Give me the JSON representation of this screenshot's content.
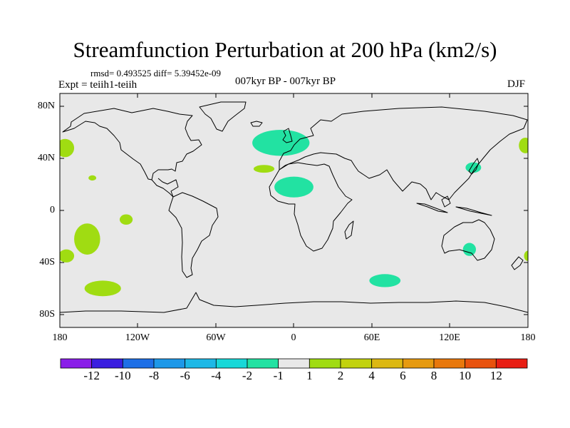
{
  "title": "Streamfunction Perturbation at 200 hPa (km2/s)",
  "stats": "rmsd= 0.493525  diff= 5.39452e-09",
  "expt": "Expt = teiih1-teiih",
  "period": "007kyr BP - 007kyr BP",
  "season": "DJF",
  "map": {
    "projection": "cylindrical equidistant",
    "lon_range": [
      -180,
      180
    ],
    "lat_range": [
      -90,
      90
    ],
    "y_tick_labels": [
      "80N",
      "40N",
      "0",
      "40S",
      "80S"
    ],
    "x_tick_labels": [
      "180",
      "120W",
      "60W",
      "0",
      "60E",
      "120E",
      "180"
    ],
    "land_fill": "#e8e8e8",
    "anomaly_regions": [
      {
        "name": "north-atlantic",
        "level": -1,
        "lon": -10,
        "lat": 52,
        "rlon": 22,
        "rlat": 10
      },
      {
        "name": "north-africa",
        "level": -1,
        "lon": 0,
        "lat": 18,
        "rlon": 15,
        "rlat": 8
      },
      {
        "name": "japan",
        "level": -1,
        "lon": 138,
        "lat": 33,
        "rlon": 6,
        "rlat": 4
      },
      {
        "name": "australia",
        "level": -1,
        "lon": 135,
        "lat": -30,
        "rlon": 5,
        "rlat": 5
      },
      {
        "name": "southern-indian",
        "level": -1,
        "lon": 70,
        "lat": -54,
        "rlon": 12,
        "rlat": 5
      },
      {
        "name": "subtropical-atlantic",
        "level": 1,
        "lon": -23,
        "lat": 32,
        "rlon": 8,
        "rlat": 3
      },
      {
        "name": "northeast-pacific",
        "level": 1,
        "lon": -176,
        "lat": 48,
        "rlon": 7,
        "rlat": 7
      },
      {
        "name": "northwest-pacific-edge",
        "level": 1,
        "lon": 178,
        "lat": 50,
        "rlon": 5,
        "rlat": 6
      },
      {
        "name": "hawaii",
        "level": 1,
        "lon": -155,
        "lat": 25,
        "rlon": 3,
        "rlat": 2
      },
      {
        "name": "central-pacific",
        "level": 1,
        "lon": -129,
        "lat": -7,
        "rlon": 5,
        "rlat": 4
      },
      {
        "name": "southeast-pacific-band",
        "level": 1,
        "lon": -159,
        "lat": -22,
        "rlon": 10,
        "rlat": 12
      },
      {
        "name": "south-pacific-west",
        "level": 1,
        "lon": -175,
        "lat": -35,
        "rlon": 6,
        "rlat": 5
      },
      {
        "name": "south-pacific-east",
        "level": 1,
        "lon": -147,
        "lat": -60,
        "rlon": 14,
        "rlat": 6
      },
      {
        "name": "south-pacific-edge",
        "level": 1,
        "lon": 180,
        "lat": -35,
        "rlon": 3,
        "rlat": 4
      }
    ]
  },
  "colorbar": {
    "colors": [
      "#8a1ee8",
      "#3a1ee0",
      "#1e6fe6",
      "#1e98e8",
      "#1eb8e6",
      "#18d8d8",
      "#22e2a2",
      "#e8e8e8",
      "#a0dc12",
      "#c2d20e",
      "#dcb812",
      "#e69a10",
      "#e8780c",
      "#e8520e",
      "#e81e14"
    ],
    "labels": [
      "-12",
      "-10",
      "-8",
      "-6",
      "-4",
      "-2",
      "-1",
      "1",
      "2",
      "4",
      "6",
      "8",
      "10",
      "12"
    ]
  },
  "colors": {
    "negative_fill": "#22e2a2",
    "positive_fill": "#a0dc12",
    "coast": "#000000"
  }
}
